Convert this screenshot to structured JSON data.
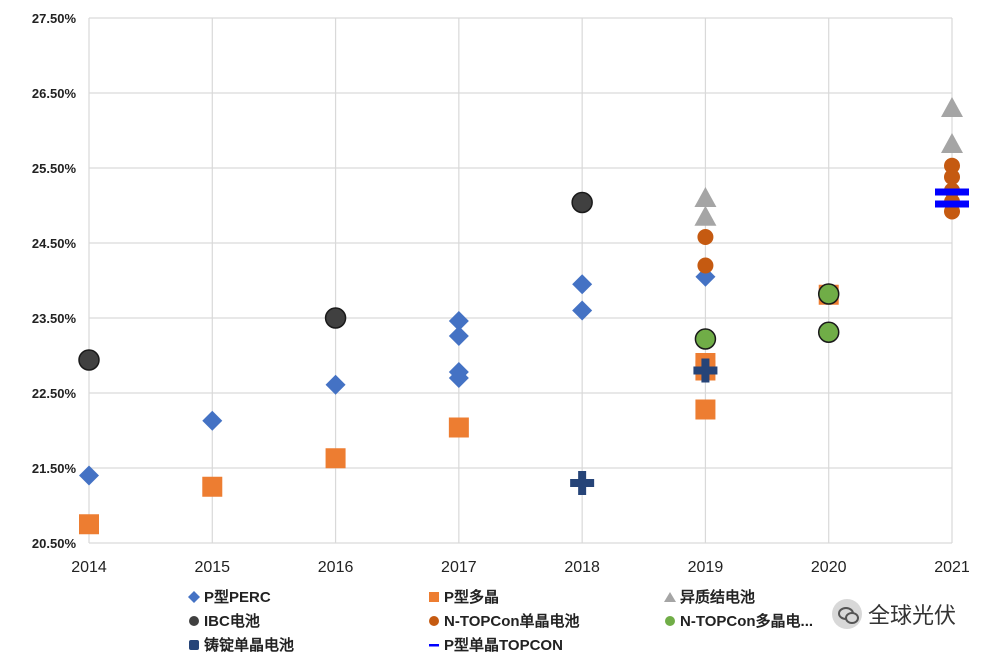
{
  "chart_data": {
    "type": "scatter",
    "title": "",
    "xlabel": "",
    "ylabel": "",
    "x_categories": [
      "2014",
      "2015",
      "2016",
      "2017",
      "2018",
      "2019",
      "2020",
      "2021"
    ],
    "y_ticks": [
      "27.50%",
      "26.50%",
      "25.50%",
      "24.50%",
      "23.50%",
      "22.50%",
      "21.50%",
      "20.50%"
    ],
    "ylim": [
      20.5,
      27.5
    ],
    "grid": true,
    "legend_position": "bottom",
    "series": [
      {
        "name": "P型PERC",
        "marker": "diamond",
        "color": "#4472C4",
        "points": [
          [
            2014,
            21.4
          ],
          [
            2015,
            22.13
          ],
          [
            2016,
            22.61
          ],
          [
            2017,
            23.46
          ],
          [
            2017,
            23.26
          ],
          [
            2017,
            22.78
          ],
          [
            2017,
            22.7
          ],
          [
            2018,
            23.95
          ],
          [
            2018,
            23.6
          ],
          [
            2019,
            24.05
          ]
        ]
      },
      {
        "name": "P型多晶",
        "marker": "square",
        "color": "#ED7D31",
        "points": [
          [
            2014,
            20.75
          ],
          [
            2015,
            21.25
          ],
          [
            2016,
            21.63
          ],
          [
            2017,
            22.04
          ],
          [
            2019,
            22.28
          ],
          [
            2019,
            22.8
          ],
          [
            2019,
            22.9
          ],
          [
            2020,
            23.81
          ]
        ]
      },
      {
        "name": "异质结电池",
        "marker": "triangle",
        "color": "#A5A5A5",
        "points": [
          [
            2019,
            25.1
          ],
          [
            2019,
            24.85
          ],
          [
            2021,
            26.3
          ],
          [
            2021,
            25.82
          ]
        ]
      },
      {
        "name": "IBC电池",
        "marker": "circle",
        "color": "#404040",
        "points": [
          [
            2014,
            22.94
          ],
          [
            2016,
            23.5
          ],
          [
            2018,
            25.04
          ]
        ]
      },
      {
        "name": "N-TOPCon单晶电池",
        "marker": "circle-small",
        "color": "#C55A11",
        "points": [
          [
            2019,
            24.58
          ],
          [
            2019,
            24.2
          ],
          [
            2021,
            25.53
          ],
          [
            2021,
            25.38
          ],
          [
            2021,
            25.2
          ],
          [
            2021,
            25.05
          ],
          [
            2021,
            24.92
          ]
        ]
      },
      {
        "name": "N-TOPCon多晶电池",
        "marker": "circle",
        "color": "#70AD47",
        "points": [
          [
            2019,
            23.22
          ],
          [
            2020,
            23.82
          ],
          [
            2020,
            23.31
          ]
        ]
      },
      {
        "name": "铸锭单晶电池",
        "marker": "plus",
        "color": "#264478",
        "points": [
          [
            2018,
            21.3
          ],
          [
            2019,
            22.8
          ]
        ]
      },
      {
        "name": "P型单晶TOPCON",
        "marker": "dash",
        "color": "#0000FF",
        "points": [
          [
            2021,
            25.18
          ],
          [
            2021,
            25.02
          ]
        ]
      }
    ]
  },
  "legend": {
    "items": [
      "P型PERC",
      "P型多晶",
      "异质结电池",
      "IBC电池",
      "N-TOPCon单晶电池",
      "N-TOPCon多晶电...",
      "铸锭单晶电池",
      "P型单晶TOPCON"
    ]
  },
  "watermark": {
    "text": "全球光伏"
  }
}
